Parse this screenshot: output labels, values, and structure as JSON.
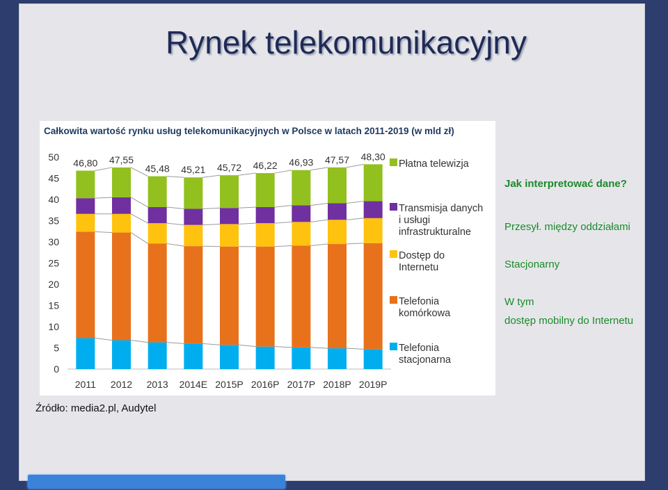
{
  "slide": {
    "title": "Rynek telekomunikacyjny"
  },
  "notes": {
    "question": "Jak interpretować dane?",
    "transfer": "Przesył. między oddziałami",
    "fixed": "Stacjonarny",
    "of_which": "W tym",
    "mobile_internet": "dostęp mobilny do Internetu"
  },
  "source": "Źródło: media2.pl, Audytel",
  "chart_data": {
    "type": "bar",
    "stacked": true,
    "title": "Całkowita wartość rynku usług telekomunikacyjnych w Polsce w latach 2011-2019 (w mld zł)",
    "categories": [
      "2011",
      "2012",
      "2013",
      "2014E",
      "2015P",
      "2016P",
      "2017P",
      "2018P",
      "2019P"
    ],
    "totals": [
      "46,80",
      "47,55",
      "45,48",
      "45,21",
      "45,72",
      "46,22",
      "46,93",
      "47,57",
      "48,30"
    ],
    "ylim": [
      0,
      50
    ],
    "yticks": [
      "0",
      "5",
      "10",
      "15",
      "20",
      "25",
      "30",
      "35",
      "40",
      "45",
      "50"
    ],
    "legend_position": "right",
    "series": [
      {
        "name": "Telefonia stacjonarna",
        "color": "#00aeef",
        "values": [
          7.3,
          6.8,
          6.3,
          6.0,
          5.7,
          5.3,
          5.1,
          4.9,
          4.7
        ]
      },
      {
        "name": "Telefonia komórkowa",
        "color": "#e8711c",
        "values": [
          25.1,
          25.4,
          23.3,
          23.0,
          23.2,
          23.6,
          24.0,
          24.6,
          25.0
        ]
      },
      {
        "name": "Dostęp do Internetu",
        "color": "#ffc20e",
        "values": [
          4.2,
          4.4,
          4.8,
          5.0,
          5.3,
          5.5,
          5.6,
          5.7,
          5.9
        ]
      },
      {
        "name": "Transmisja danych i usługi infrastrukturalne",
        "color": "#7030a0",
        "values": [
          3.7,
          3.9,
          3.8,
          3.8,
          3.8,
          3.8,
          3.9,
          3.9,
          4.0
        ]
      },
      {
        "name": "Płatna telewizja",
        "color": "#92c01f",
        "values": [
          6.5,
          7.05,
          7.28,
          7.41,
          7.72,
          8.02,
          8.33,
          8.47,
          8.7
        ]
      }
    ]
  }
}
